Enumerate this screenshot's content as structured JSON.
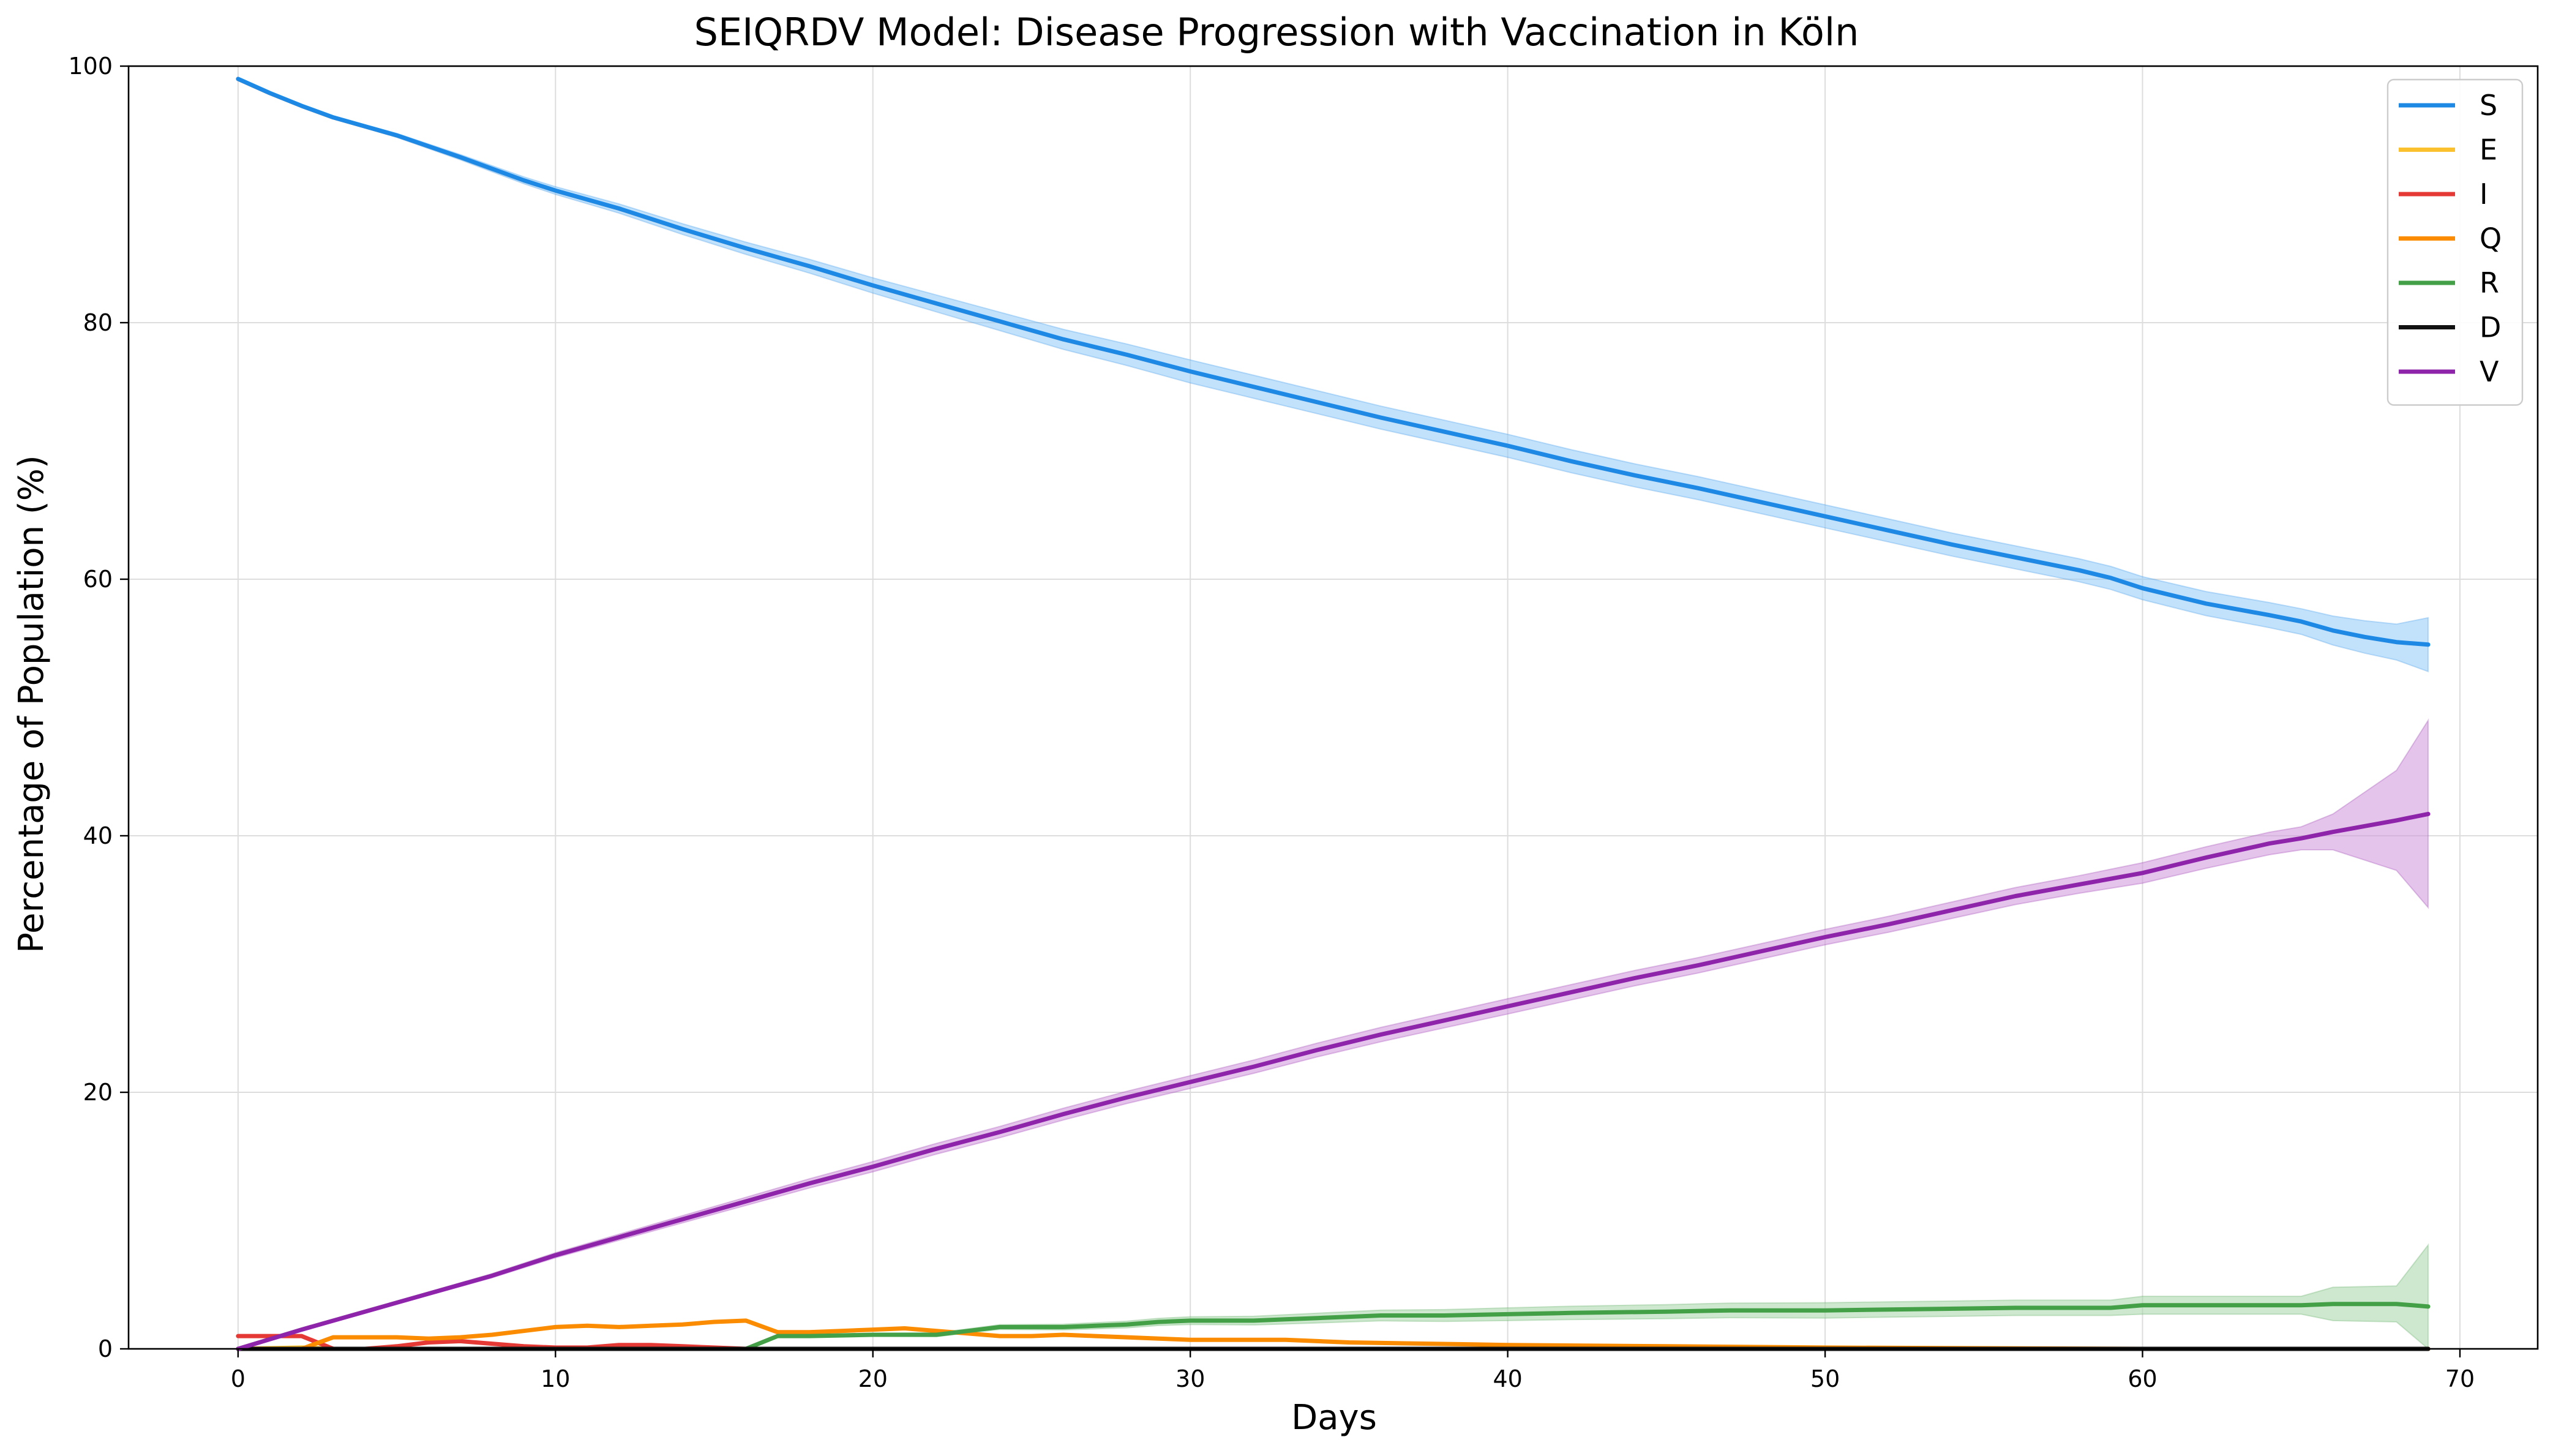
{
  "chart_data": {
    "type": "line",
    "title": "SEIQRDV Model: Disease Progression with Vaccination in Köln",
    "xlabel": "Days",
    "ylabel": "Percentage of Population (%)",
    "xlim": [
      -3.45,
      72.45
    ],
    "ylim": [
      0,
      100
    ],
    "x_ticks": [
      0,
      10,
      20,
      30,
      40,
      50,
      60,
      70
    ],
    "y_ticks": [
      0,
      20,
      40,
      60,
      80,
      100
    ],
    "grid": true,
    "legend_position": "top-right",
    "series": [
      {
        "name": "S",
        "color": "#1e88e5",
        "band_color": "#90caf9",
        "points": [
          [
            0,
            99
          ],
          [
            1,
            97.9
          ],
          [
            2,
            96.9
          ],
          [
            3,
            96
          ],
          [
            5,
            94.6
          ],
          [
            7,
            92.9
          ],
          [
            9,
            91.1
          ],
          [
            10,
            90.3
          ],
          [
            12,
            88.9
          ],
          [
            14,
            87.3
          ],
          [
            16,
            85.8
          ],
          [
            18,
            84.4
          ],
          [
            20,
            82.9
          ],
          [
            22,
            81.5
          ],
          [
            24,
            80.1
          ],
          [
            26,
            78.7
          ],
          [
            28,
            77.5
          ],
          [
            30,
            76.2
          ],
          [
            32,
            75
          ],
          [
            34,
            73.8
          ],
          [
            36,
            72.6
          ],
          [
            38,
            71.5
          ],
          [
            40,
            70.4
          ],
          [
            42,
            69.2
          ],
          [
            44,
            68.1
          ],
          [
            46,
            67.1
          ],
          [
            48,
            66
          ],
          [
            50,
            64.9
          ],
          [
            52,
            63.8
          ],
          [
            54,
            62.7
          ],
          [
            56,
            61.7
          ],
          [
            58,
            60.7
          ],
          [
            59,
            60.1
          ],
          [
            60,
            59.3
          ],
          [
            62,
            58.1
          ],
          [
            64,
            57.2
          ],
          [
            65,
            56.7
          ],
          [
            66,
            56
          ],
          [
            67,
            55.5
          ],
          [
            68,
            55.1
          ],
          [
            69,
            54.9
          ]
        ],
        "band": [
          [
            0,
            0
          ],
          [
            10,
            0.3
          ],
          [
            20,
            0.6
          ],
          [
            30,
            0.9
          ],
          [
            40,
            0.9
          ],
          [
            50,
            0.9
          ],
          [
            59,
            0.9
          ],
          [
            60,
            0.9
          ],
          [
            65,
            1
          ],
          [
            68,
            1.4
          ],
          [
            69,
            2.1
          ]
        ]
      },
      {
        "name": "E",
        "color": "#fbc02d",
        "points": [
          [
            0,
            0
          ],
          [
            2,
            0.1
          ],
          [
            3,
            0
          ],
          [
            69,
            0
          ]
        ]
      },
      {
        "name": "I",
        "color": "#e53935",
        "points": [
          [
            0,
            1
          ],
          [
            1,
            1
          ],
          [
            2,
            1
          ],
          [
            3,
            0
          ],
          [
            4,
            0
          ],
          [
            5,
            0.2
          ],
          [
            6,
            0.5
          ],
          [
            7,
            0.6
          ],
          [
            8,
            0.4
          ],
          [
            9,
            0.2
          ],
          [
            10,
            0.1
          ],
          [
            11,
            0.1
          ],
          [
            12,
            0.3
          ],
          [
            13,
            0.3
          ],
          [
            14,
            0.2
          ],
          [
            15,
            0.1
          ],
          [
            16,
            0
          ],
          [
            69,
            0
          ]
        ]
      },
      {
        "name": "Q",
        "color": "#fb8c00",
        "points": [
          [
            0,
            0
          ],
          [
            2,
            0
          ],
          [
            3,
            0.9
          ],
          [
            4,
            0.9
          ],
          [
            5,
            0.9
          ],
          [
            6,
            0.8
          ],
          [
            7,
            0.9
          ],
          [
            8,
            1.1
          ],
          [
            9,
            1.4
          ],
          [
            10,
            1.7
          ],
          [
            11,
            1.8
          ],
          [
            12,
            1.7
          ],
          [
            13,
            1.8
          ],
          [
            14,
            1.9
          ],
          [
            15,
            2.1
          ],
          [
            16,
            2.2
          ],
          [
            17,
            1.3
          ],
          [
            18,
            1.3
          ],
          [
            19,
            1.4
          ],
          [
            20,
            1.5
          ],
          [
            21,
            1.6
          ],
          [
            22,
            1.4
          ],
          [
            23,
            1.2
          ],
          [
            24,
            1
          ],
          [
            25,
            1
          ],
          [
            26,
            1.1
          ],
          [
            27,
            1
          ],
          [
            28,
            0.9
          ],
          [
            29,
            0.8
          ],
          [
            30,
            0.7
          ],
          [
            32,
            0.7
          ],
          [
            33,
            0.7
          ],
          [
            34,
            0.6
          ],
          [
            35,
            0.5
          ],
          [
            40,
            0.3
          ],
          [
            45,
            0.2
          ],
          [
            50,
            0.1
          ],
          [
            55,
            0.05
          ],
          [
            60,
            0
          ],
          [
            69,
            0
          ]
        ]
      },
      {
        "name": "R",
        "color": "#43a047",
        "band_color": "#a5d6a7",
        "points": [
          [
            0,
            0
          ],
          [
            16,
            0
          ],
          [
            17,
            1
          ],
          [
            18,
            1
          ],
          [
            20,
            1.1
          ],
          [
            22,
            1.1
          ],
          [
            23,
            1.4
          ],
          [
            24,
            1.7
          ],
          [
            26,
            1.7
          ],
          [
            27,
            1.8
          ],
          [
            28,
            1.9
          ],
          [
            29,
            2.1
          ],
          [
            30,
            2.2
          ],
          [
            32,
            2.2
          ],
          [
            33,
            2.3
          ],
          [
            34,
            2.4
          ],
          [
            35,
            2.5
          ],
          [
            36,
            2.6
          ],
          [
            38,
            2.6
          ],
          [
            40,
            2.7
          ],
          [
            42,
            2.8
          ],
          [
            45,
            2.9
          ],
          [
            47,
            3
          ],
          [
            50,
            3
          ],
          [
            53,
            3.1
          ],
          [
            56,
            3.2
          ],
          [
            59,
            3.2
          ],
          [
            60,
            3.4
          ],
          [
            62,
            3.4
          ],
          [
            65,
            3.4
          ],
          [
            66,
            3.5
          ],
          [
            68,
            3.5
          ],
          [
            69,
            3.3
          ]
        ],
        "band": [
          [
            0,
            0
          ],
          [
            17,
            0.05
          ],
          [
            30,
            0.3
          ],
          [
            40,
            0.5
          ],
          [
            50,
            0.6
          ],
          [
            59,
            0.6
          ],
          [
            60,
            0.7
          ],
          [
            65,
            0.7
          ],
          [
            66,
            1.3
          ],
          [
            68,
            1.4
          ],
          [
            69,
            4.8
          ]
        ]
      },
      {
        "name": "D",
        "color": "#111111",
        "points": [
          [
            0,
            0
          ],
          [
            69,
            0
          ]
        ]
      },
      {
        "name": "V",
        "color": "#8e24aa",
        "band_color": "#ce93d8",
        "points": [
          [
            0,
            0
          ],
          [
            2,
            1.5
          ],
          [
            4,
            2.9
          ],
          [
            6,
            4.3
          ],
          [
            8,
            5.7
          ],
          [
            10,
            7.3
          ],
          [
            12,
            8.7
          ],
          [
            14,
            10.1
          ],
          [
            16,
            11.5
          ],
          [
            18,
            12.9
          ],
          [
            20,
            14.2
          ],
          [
            22,
            15.6
          ],
          [
            24,
            16.9
          ],
          [
            26,
            18.3
          ],
          [
            28,
            19.6
          ],
          [
            30,
            20.8
          ],
          [
            32,
            22
          ],
          [
            34,
            23.3
          ],
          [
            36,
            24.5
          ],
          [
            38,
            25.6
          ],
          [
            40,
            26.7
          ],
          [
            42,
            27.8
          ],
          [
            44,
            28.9
          ],
          [
            46,
            29.9
          ],
          [
            48,
            31
          ],
          [
            50,
            32.1
          ],
          [
            52,
            33.1
          ],
          [
            54,
            34.2
          ],
          [
            56,
            35.3
          ],
          [
            58,
            36.2
          ],
          [
            60,
            37.1
          ],
          [
            62,
            38.3
          ],
          [
            64,
            39.4
          ],
          [
            65,
            39.8
          ],
          [
            66,
            40.3
          ],
          [
            68,
            41.2
          ],
          [
            69,
            41.7
          ]
        ],
        "band": [
          [
            0,
            0
          ],
          [
            10,
            0.2
          ],
          [
            20,
            0.4
          ],
          [
            30,
            0.5
          ],
          [
            40,
            0.6
          ],
          [
            50,
            0.6
          ],
          [
            59,
            0.7
          ],
          [
            60,
            0.8
          ],
          [
            65,
            0.9
          ],
          [
            66,
            1.4
          ],
          [
            67,
            2.2
          ],
          [
            68,
            3.9
          ],
          [
            69,
            7.3
          ]
        ]
      }
    ]
  }
}
